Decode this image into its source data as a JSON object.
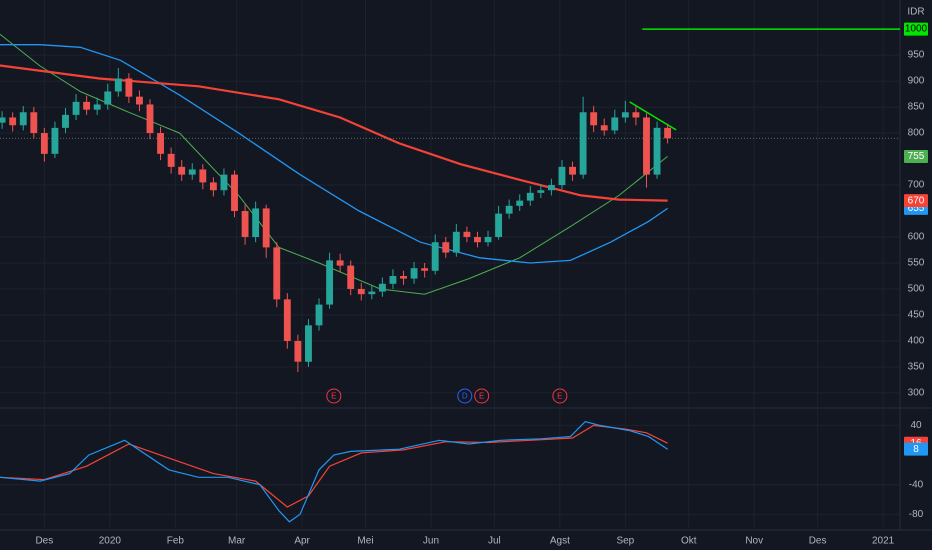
{
  "chart_data": [
    {
      "type": "candlestick",
      "currency": "IDR",
      "up_color": "#26a69a",
      "down_color": "#ef5350",
      "xlim": [
        -21,
        405
      ],
      "ylim": [
        271,
        1056
      ],
      "yticks": [
        300,
        350,
        400,
        450,
        500,
        550,
        600,
        700,
        800,
        850,
        900,
        950
      ],
      "grid": true,
      "x": [
        -20,
        -15,
        -10,
        -5,
        0,
        5,
        10,
        15,
        20,
        25,
        30,
        35,
        40,
        45,
        50,
        55,
        60,
        65,
        70,
        75,
        80,
        85,
        90,
        95,
        100,
        105,
        110,
        115,
        120,
        125,
        130,
        135,
        140,
        145,
        150,
        155,
        160,
        165,
        170,
        175,
        180,
        185,
        190,
        195,
        200,
        205,
        210,
        215,
        220,
        225,
        230,
        235,
        240,
        245,
        250,
        255,
        260,
        265,
        270,
        275,
        280,
        285,
        290,
        295
      ],
      "open": [
        820,
        830,
        815,
        840,
        800,
        760,
        810,
        835,
        860,
        845,
        855,
        880,
        905,
        870,
        855,
        800,
        760,
        735,
        720,
        730,
        705,
        690,
        720,
        650,
        600,
        655,
        580,
        480,
        400,
        360,
        430,
        470,
        555,
        545,
        500,
        490,
        495,
        510,
        525,
        520,
        540,
        535,
        590,
        570,
        610,
        600,
        590,
        600,
        645,
        660,
        670,
        685,
        690,
        700,
        735,
        720,
        840,
        815,
        805,
        830,
        840,
        830,
        720,
        810
      ],
      "high": [
        842,
        840,
        852,
        850,
        810,
        822,
        848,
        875,
        872,
        868,
        895,
        925,
        915,
        882,
        865,
        812,
        772,
        748,
        742,
        740,
        715,
        732,
        728,
        662,
        668,
        662,
        590,
        492,
        412,
        442,
        482,
        570,
        568,
        555,
        512,
        508,
        522,
        538,
        535,
        552,
        550,
        605,
        600,
        625,
        620,
        610,
        612,
        660,
        672,
        682,
        698,
        702,
        712,
        748,
        745,
        870,
        852,
        828,
        845,
        862,
        852,
        838,
        822,
        818
      ],
      "low": [
        808,
        803,
        805,
        790,
        745,
        752,
        800,
        825,
        835,
        835,
        845,
        870,
        858,
        842,
        788,
        748,
        722,
        708,
        710,
        692,
        678,
        680,
        638,
        585,
        590,
        560,
        465,
        385,
        340,
        350,
        420,
        462,
        532,
        488,
        478,
        480,
        485,
        500,
        508,
        510,
        522,
        528,
        560,
        562,
        590,
        580,
        582,
        595,
        635,
        650,
        660,
        675,
        680,
        692,
        708,
        712,
        802,
        795,
        798,
        820,
        815,
        695,
        712,
        780
      ],
      "close": [
        830,
        815,
        840,
        800,
        760,
        810,
        835,
        860,
        845,
        855,
        880,
        905,
        870,
        855,
        800,
        760,
        735,
        720,
        730,
        705,
        690,
        720,
        650,
        600,
        655,
        580,
        480,
        400,
        360,
        430,
        470,
        555,
        545,
        500,
        490,
        495,
        510,
        525,
        520,
        540,
        535,
        590,
        570,
        610,
        600,
        590,
        600,
        645,
        660,
        670,
        685,
        690,
        700,
        735,
        720,
        840,
        815,
        805,
        830,
        840,
        830,
        720,
        810,
        790
      ],
      "lines": [
        {
          "color": "#4caf50",
          "width": 1,
          "badge": true,
          "x": [
            -21,
            -2,
            17,
            40,
            64,
            92,
            111,
            130,
            159,
            180,
            201,
            225,
            249,
            272,
            295
          ],
          "values": [
            990,
            929,
            880,
            840,
            800,
            680,
            580,
            550,
            500,
            490,
            520,
            560,
            620,
            680,
            755
          ]
        },
        {
          "color": "#2196f3",
          "width": 1.3,
          "badge": true,
          "x": [
            -21,
            -2,
            17,
            36,
            64,
            92,
            121,
            149,
            178,
            206,
            230,
            249,
            268,
            286,
            295
          ],
          "values": [
            970,
            970,
            965,
            940,
            873,
            800,
            720,
            650,
            590,
            560,
            550,
            555,
            590,
            630,
            655
          ]
        },
        {
          "color": "#f44336",
          "width": 2.2,
          "badge": true,
          "x": [
            -21,
            26,
            73,
            111,
            140,
            168,
            197,
            225,
            254,
            272,
            295
          ],
          "values": [
            930,
            905,
            890,
            865,
            830,
            780,
            740,
            710,
            680,
            672,
            670
          ]
        },
        {
          "color": "#00e600",
          "width": 1.5,
          "badge": false,
          "x": [
            277,
            299
          ],
          "values": [
            860,
            806
          ]
        },
        {
          "color": "#00e600",
          "width": 1.5,
          "badge": true,
          "x": [
            283,
            405
          ],
          "values": [
            1000,
            1000
          ]
        }
      ],
      "events": [
        {
          "x": 137,
          "label": "E",
          "color": "#f23645"
        },
        {
          "x": 199,
          "label": "D",
          "color": "#2962ff"
        },
        {
          "x": 207,
          "label": "E",
          "color": "#f23645"
        },
        {
          "x": 244,
          "label": "E",
          "color": "#f23645"
        }
      ]
    },
    {
      "type": "line",
      "xlim": [
        -21,
        405
      ],
      "ylim": [
        -101,
        63.5
      ],
      "yticks": [
        40,
        -40,
        -80
      ],
      "grid": true,
      "xticks": [
        {
          "value": 0,
          "label": "Des"
        },
        {
          "value": 31,
          "label": "2020"
        },
        {
          "value": 62,
          "label": "Feb"
        },
        {
          "value": 91,
          "label": "Mar"
        },
        {
          "value": 122,
          "label": "Apr"
        },
        {
          "value": 152,
          "label": "Mei"
        },
        {
          "value": 183,
          "label": "Jun"
        },
        {
          "value": 213,
          "label": "Jul"
        },
        {
          "value": 244,
          "label": "Agst"
        },
        {
          "value": 275,
          "label": "Sep"
        },
        {
          "value": 305,
          "label": "Okt"
        },
        {
          "value": 336,
          "label": "Nov"
        },
        {
          "value": 366,
          "label": "Des"
        },
        {
          "value": 397,
          "label": "2021"
        }
      ],
      "series": [
        {
          "color": "#f44336",
          "width": 1.2,
          "x": [
            -21,
            0,
            20,
            40,
            60,
            80,
            100,
            115,
            125,
            135,
            150,
            170,
            190,
            210,
            230,
            250,
            260,
            275,
            285,
            295
          ],
          "values": [
            -30,
            -33,
            -15,
            15,
            -5,
            -25,
            -35,
            -70,
            -55,
            -15,
            3,
            7,
            18,
            17,
            20,
            23,
            40,
            35,
            30,
            16
          ]
        },
        {
          "color": "#2196f3",
          "width": 1.2,
          "x": [
            -21,
            -2,
            12,
            21,
            38,
            59,
            73,
            87,
            102,
            111,
            116,
            121,
            130,
            137,
            145,
            168,
            187,
            201,
            216,
            235,
            249,
            256,
            263,
            277,
            286,
            295
          ],
          "values": [
            -30,
            -35,
            -25,
            0,
            20,
            -20,
            -30,
            -30,
            -40,
            -75,
            -90,
            -80,
            -20,
            0,
            5,
            8,
            20,
            15,
            20,
            22,
            25,
            45,
            40,
            33,
            25,
            8
          ]
        }
      ]
    }
  ]
}
